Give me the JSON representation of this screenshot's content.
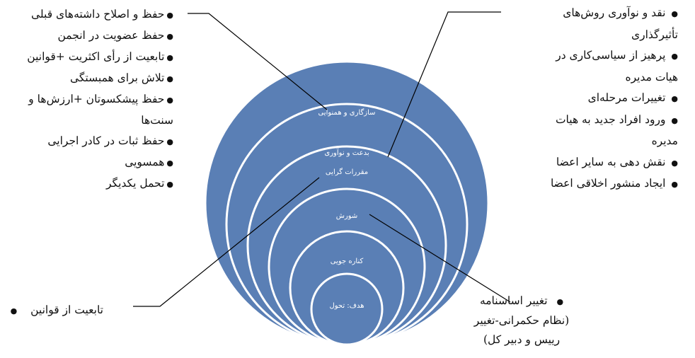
{
  "left_list": [
    "حفظ و اصلاح داشته‌های قبلی",
    "حفظ عضویت در انجمن",
    "تابعیت از رأی اکثریت +قوانین",
    "تلاش برای همبستگی",
    "حفظ پیشکسوتان +ارزش‌ها و",
    "سنت‌ها",
    "حفظ ثبات در کادر اجرایی",
    "همسویی",
    "تحمل یکدیگر"
  ],
  "right_list": [
    "نقد و نوآوری روش‌های",
    "تأثیرگذاری",
    "پرهیز از سیاسی‌کاری در",
    "هیات مدیره",
    "تغییرات مرحله‌ای",
    "ورود افراد جدید به هیات",
    "مدیره",
    "نقش دهی به سایر اعضا",
    "ایجاد منشور اخلاقی اعضا"
  ],
  "bottom_left_label": "تابعیت از قوانین",
  "bottom_right_label": [
    "تغییر اساسنامه",
    "(نظام حکمرانی-تغییر",
    "رییس و دبیر کل)"
  ],
  "circle_labels": [
    "سازگاری و همنوایی",
    "بدعت و نوآوری",
    "مقررات گرایی",
    "شورش",
    "کناره جویی",
    "هدف: تحول"
  ],
  "colors": {
    "circle_fill": "#5a7fb5",
    "circle_stroke": "#ffffff"
  }
}
